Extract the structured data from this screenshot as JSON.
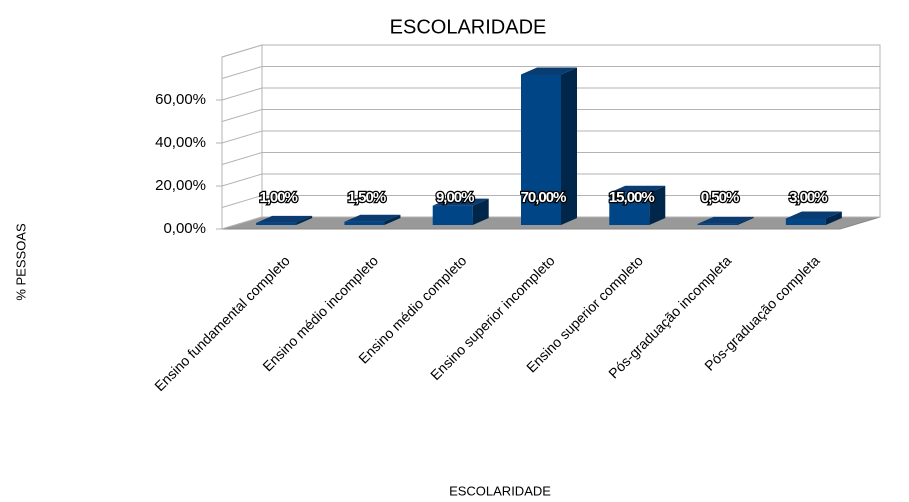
{
  "chart_data": {
    "type": "bar3d",
    "title": "ESCOLARIDADE",
    "x_label": "ESCOLARIDADE",
    "y_label": "% PESSOAS",
    "categories": [
      "Ensino fundamental completo",
      "Ensino médio incompleto",
      "Ensino médio completo",
      "Ensino superior incompleto",
      "Ensino superior completo",
      "Pós-graduação incompleta",
      "Pós-graduação completa"
    ],
    "values": [
      1,
      1.5,
      9,
      70,
      15,
      0.5,
      3
    ],
    "value_labels": [
      "1,00%",
      "1,50%",
      "9,00%",
      "70,00%",
      "15,00%",
      "0,50%",
      "3,00%"
    ],
    "color": "#004586",
    "ylim": [
      0,
      80
    ],
    "yticks": [
      {
        "value": 0,
        "label": "0,00%"
      },
      {
        "value": 20,
        "label": "20,00%"
      },
      {
        "value": 40,
        "label": "40,00%"
      },
      {
        "value": 60,
        "label": "60,00%"
      }
    ],
    "gridlines": [
      0,
      10,
      20,
      30,
      40,
      50,
      60,
      70,
      80
    ]
  }
}
